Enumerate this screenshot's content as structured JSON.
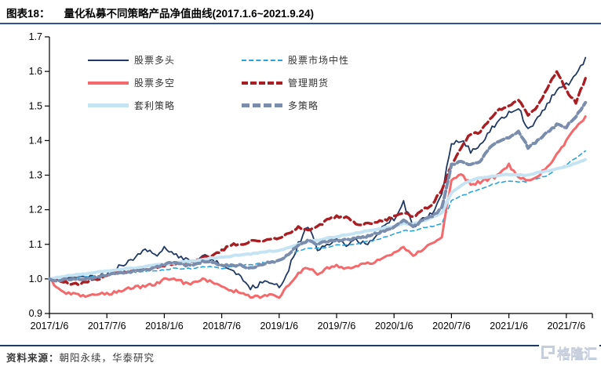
{
  "header": {
    "fig_label": "图表18：",
    "fig_title": "量化私募不同策略产品净值曲线(2017.1.6~2021.9.24)"
  },
  "chart_data": {
    "type": "line",
    "title": "量化私募不同策略产品净值曲线(2017.1.6~2021.9.24)",
    "xlabel": "",
    "ylabel": "",
    "ylim": [
      0.9,
      1.7
    ],
    "y_ticks": [
      "1.7",
      "1.6",
      "1.5",
      "1.4",
      "1.3",
      "1.2",
      "1.1",
      "1.0",
      "0.9"
    ],
    "y_tick_values": [
      1.7,
      1.6,
      1.5,
      1.4,
      1.3,
      1.2,
      1.1,
      1.0,
      0.9
    ],
    "x_tick_labels": [
      "2017/1/6",
      "2017/7/6",
      "2018/1/6",
      "2018/7/6",
      "2019/1/6",
      "2019/7/6",
      "2020/1/6",
      "2020/7/6",
      "2021/1/6",
      "2021/7/6"
    ],
    "x_start": "2017/1",
    "x_end": "2021/9",
    "x_points_per_series": 57,
    "x_tick_interval_months": 6,
    "grid": "off",
    "legend_position": "top-left",
    "series": [
      {
        "name": "股票多头",
        "color": "#1f3864",
        "style": "solid",
        "width": 1.8,
        "values": [
          1.0,
          0.998,
          1.003,
          1.0,
          1.004,
          1.008,
          1.015,
          1.03,
          1.045,
          1.06,
          1.09,
          1.065,
          1.09,
          1.075,
          1.06,
          1.045,
          1.07,
          1.055,
          1.045,
          1.02,
          1.005,
          0.972,
          0.985,
          0.992,
          0.975,
          1.03,
          1.1,
          1.155,
          1.085,
          1.1,
          1.12,
          1.095,
          1.11,
          1.1,
          1.12,
          1.16,
          1.175,
          1.22,
          1.15,
          1.17,
          1.19,
          1.25,
          1.395,
          1.4,
          1.37,
          1.39,
          1.43,
          1.455,
          1.48,
          1.495,
          1.43,
          1.465,
          1.505,
          1.545,
          1.56,
          1.585,
          1.64
        ]
      },
      {
        "name": "股票市场中性",
        "color": "#29a3dc",
        "style": "dashed",
        "width": 1.6,
        "values": [
          1.0,
          0.998,
          1.0,
          1.004,
          1.006,
          1.01,
          1.012,
          1.016,
          1.02,
          1.02,
          1.022,
          1.022,
          1.026,
          1.03,
          1.03,
          1.03,
          1.035,
          1.035,
          1.03,
          1.035,
          1.04,
          1.04,
          1.045,
          1.05,
          1.052,
          1.07,
          1.082,
          1.09,
          1.088,
          1.09,
          1.1,
          1.098,
          1.1,
          1.108,
          1.112,
          1.12,
          1.13,
          1.14,
          1.138,
          1.148,
          1.152,
          1.16,
          1.225,
          1.24,
          1.25,
          1.26,
          1.27,
          1.28,
          1.282,
          1.28,
          1.282,
          1.29,
          1.3,
          1.318,
          1.33,
          1.35,
          1.37
        ]
      },
      {
        "name": "股票多空",
        "color": "#f4696b",
        "style": "solid",
        "width": 3,
        "values": [
          1.0,
          0.968,
          0.958,
          0.952,
          0.948,
          0.955,
          0.958,
          0.962,
          0.97,
          0.975,
          0.98,
          0.985,
          1.0,
          1.002,
          0.99,
          0.988,
          1.0,
          0.992,
          0.98,
          0.968,
          0.96,
          0.95,
          0.945,
          0.952,
          0.95,
          0.98,
          1.02,
          1.03,
          1.015,
          1.03,
          1.04,
          1.03,
          1.04,
          1.042,
          1.05,
          1.06,
          1.072,
          1.09,
          1.07,
          1.085,
          1.1,
          1.125,
          1.29,
          1.3,
          1.275,
          1.28,
          1.29,
          1.3,
          1.33,
          1.295,
          1.285,
          1.3,
          1.32,
          1.36,
          1.4,
          1.44,
          1.47
        ]
      },
      {
        "name": "管理期货",
        "color": "#a81e22",
        "style": "dashed",
        "width": 3.4,
        "values": [
          1.0,
          0.993,
          0.988,
          0.985,
          0.992,
          0.998,
          1.012,
          1.02,
          1.018,
          1.025,
          1.028,
          1.032,
          1.04,
          1.042,
          1.05,
          1.052,
          1.06,
          1.07,
          1.082,
          1.1,
          1.098,
          1.108,
          1.108,
          1.118,
          1.118,
          1.13,
          1.15,
          1.14,
          1.15,
          1.17,
          1.18,
          1.178,
          1.16,
          1.158,
          1.162,
          1.17,
          1.18,
          1.19,
          1.18,
          1.2,
          1.215,
          1.26,
          1.33,
          1.38,
          1.42,
          1.425,
          1.46,
          1.49,
          1.5,
          1.52,
          1.47,
          1.5,
          1.55,
          1.6,
          1.545,
          1.51,
          1.58
        ]
      },
      {
        "name": "套利策略",
        "color": "#c5e4f3",
        "style": "solid",
        "width": 4,
        "values": [
          1.0,
          1.005,
          1.01,
          1.012,
          1.016,
          1.02,
          1.022,
          1.026,
          1.03,
          1.032,
          1.036,
          1.04,
          1.042,
          1.046,
          1.05,
          1.052,
          1.056,
          1.06,
          1.062,
          1.066,
          1.07,
          1.072,
          1.076,
          1.08,
          1.082,
          1.09,
          1.1,
          1.108,
          1.112,
          1.118,
          1.122,
          1.128,
          1.132,
          1.138,
          1.142,
          1.148,
          1.152,
          1.16,
          1.158,
          1.168,
          1.178,
          1.19,
          1.25,
          1.27,
          1.285,
          1.292,
          1.295,
          1.3,
          1.302,
          1.3,
          1.3,
          1.308,
          1.312,
          1.318,
          1.325,
          1.335,
          1.345
        ]
      },
      {
        "name": "多策略",
        "color": "#7b8dad",
        "style": "dashed",
        "width": 4,
        "values": [
          1.0,
          0.995,
          1.0,
          1.0,
          1.002,
          1.006,
          1.012,
          1.016,
          1.02,
          1.022,
          1.026,
          1.032,
          1.042,
          1.05,
          1.04,
          1.042,
          1.05,
          1.048,
          1.04,
          1.038,
          1.04,
          1.03,
          1.04,
          1.05,
          1.052,
          1.072,
          1.1,
          1.11,
          1.1,
          1.108,
          1.11,
          1.112,
          1.118,
          1.12,
          1.13,
          1.14,
          1.15,
          1.17,
          1.15,
          1.17,
          1.18,
          1.205,
          1.33,
          1.34,
          1.33,
          1.34,
          1.38,
          1.4,
          1.41,
          1.425,
          1.38,
          1.4,
          1.425,
          1.445,
          1.44,
          1.47,
          1.51
        ]
      }
    ]
  },
  "footer": {
    "source_label": "资料来源：",
    "source_text": "朝阳永续，华泰研究",
    "logo_text": "格隆汇"
  },
  "colors": {
    "title_rule": "#2e5496",
    "footer_rule": "#1f3864",
    "axis": "#000000",
    "logo": "#ccd3de"
  }
}
